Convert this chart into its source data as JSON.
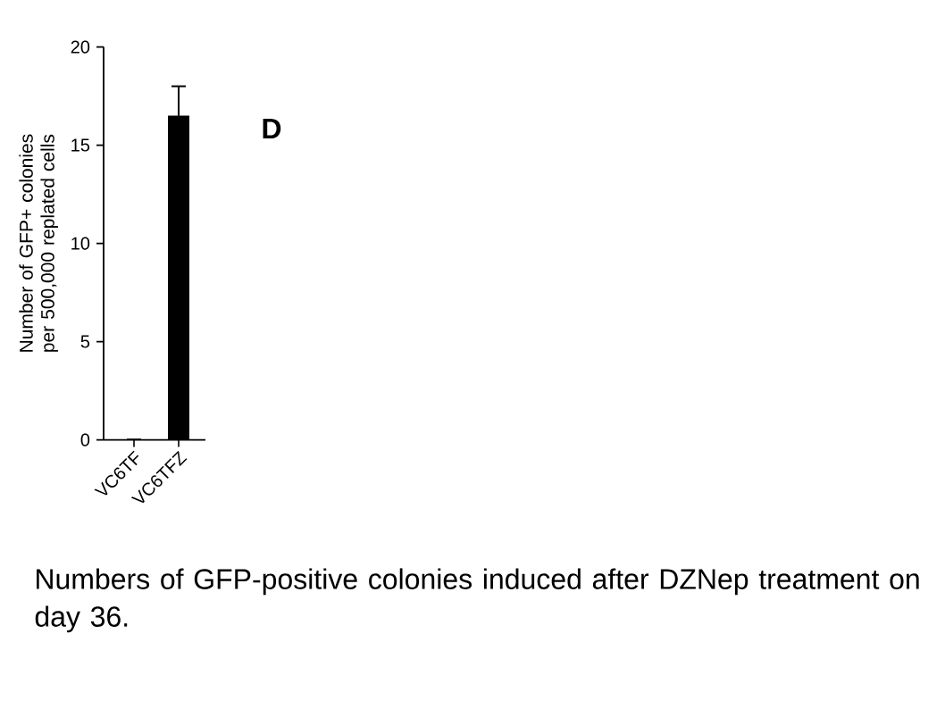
{
  "chart_data": {
    "type": "bar",
    "title": "D",
    "ylabel": "Number of GFP+ colonies per 500,000 replated cells",
    "categories": [
      "VC6TF",
      "VC6TFZ"
    ],
    "values": [
      0,
      16.5
    ],
    "errors": [
      null,
      1.5
    ],
    "color": "#000000",
    "ylim": [
      0,
      20
    ],
    "yticks": [
      0,
      5,
      10,
      15,
      20
    ],
    "grid": false,
    "annotations": [
      "Numbers of GFP-positive colonies induced after DZNep treatment on day 36."
    ]
  }
}
